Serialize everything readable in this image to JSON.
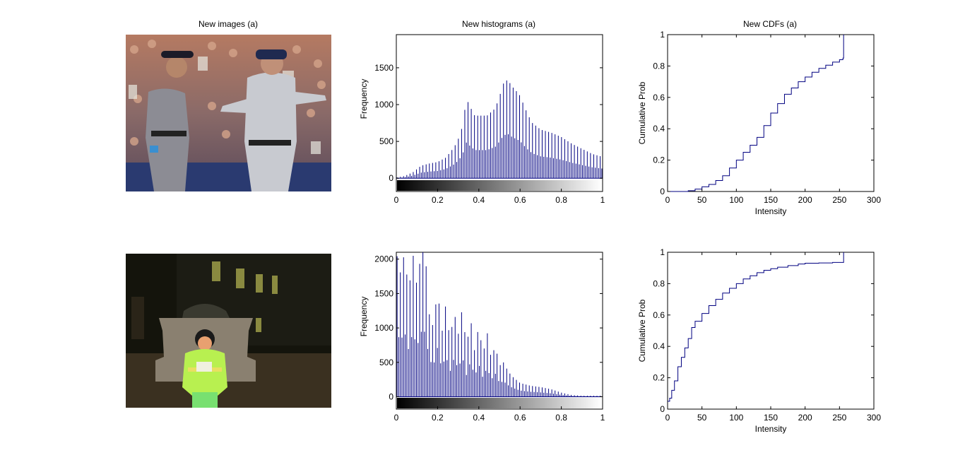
{
  "figure": {
    "col_titles": [
      "New images (a)",
      "New histograms (a)",
      "New CDFs (a)"
    ]
  },
  "images": [
    {
      "description_icon": "baseball-umpire-and-manager-photo"
    },
    {
      "description_icon": "child-at-night-photo"
    }
  ],
  "chart_data": [
    {
      "type": "bar",
      "title": "New histograms (a)",
      "ylabel": "Frequency",
      "xlim": [
        0,
        1
      ],
      "ylim": [
        -180,
        1950
      ],
      "xticks": [
        "0",
        "0.2",
        "0.4",
        "0.6",
        "0.8",
        "1"
      ],
      "yticks": [
        "0",
        "500",
        "1000",
        "1500"
      ],
      "ytick_values": [
        0,
        500,
        1000,
        1500
      ],
      "colorbar": "grayscale",
      "bar_color": "#000080",
      "control_points": {
        "x": [
          0.0,
          0.04,
          0.08,
          0.12,
          0.16,
          0.2,
          0.24,
          0.28,
          0.3,
          0.32,
          0.34,
          0.36,
          0.38,
          0.4,
          0.44,
          0.48,
          0.5,
          0.52,
          0.54,
          0.56,
          0.58,
          0.6,
          0.62,
          0.64,
          0.66,
          0.7,
          0.75,
          0.8,
          0.85,
          0.9,
          0.95,
          1.0
        ],
        "y": [
          10,
          30,
          80,
          170,
          200,
          220,
          280,
          420,
          530,
          700,
          1080,
          960,
          850,
          850,
          850,
          950,
          1110,
          1290,
          1340,
          1250,
          1190,
          1120,
          980,
          850,
          750,
          660,
          620,
          560,
          470,
          400,
          330,
          290
        ]
      }
    },
    {
      "type": "line",
      "title": "New CDFs (a)",
      "xlabel": "Intensity",
      "ylabel": "Cumulative Prob",
      "xlim": [
        0,
        300
      ],
      "ylim": [
        0,
        1
      ],
      "xticks": [
        "0",
        "50",
        "100",
        "150",
        "200",
        "250",
        "300"
      ],
      "xtick_values": [
        0,
        50,
        100,
        150,
        200,
        250,
        300
      ],
      "yticks": [
        "0",
        "0.2",
        "0.4",
        "0.6",
        "0.8",
        "1"
      ],
      "ytick_values": [
        0,
        0.2,
        0.4,
        0.6,
        0.8,
        1
      ],
      "line_color": "#000080",
      "x": [
        0,
        10,
        20,
        30,
        40,
        50,
        60,
        70,
        80,
        90,
        100,
        110,
        120,
        130,
        140,
        150,
        160,
        170,
        180,
        190,
        200,
        210,
        220,
        230,
        240,
        250,
        255,
        256,
        256
      ],
      "y": [
        0,
        0,
        0,
        0.005,
        0.015,
        0.03,
        0.045,
        0.07,
        0.1,
        0.15,
        0.2,
        0.25,
        0.295,
        0.345,
        0.42,
        0.5,
        0.56,
        0.62,
        0.66,
        0.7,
        0.73,
        0.76,
        0.785,
        0.805,
        0.825,
        0.84,
        0.85,
        0.85,
        1.0
      ]
    },
    {
      "type": "bar",
      "ylabel": "Frequency",
      "xlim": [
        0,
        1
      ],
      "ylim": [
        -180,
        2100
      ],
      "xticks": [
        "0",
        "0.2",
        "0.4",
        "0.6",
        "0.8",
        "1"
      ],
      "yticks": [
        "0",
        "500",
        "1000",
        "1500",
        "2000"
      ],
      "ytick_values": [
        0,
        500,
        1000,
        1500,
        2000
      ],
      "colorbar": "grayscale",
      "bar_color": "#000080",
      "control_points": {
        "x": [
          0.0,
          0.02,
          0.04,
          0.06,
          0.08,
          0.1,
          0.12,
          0.14,
          0.16,
          0.18,
          0.2,
          0.22,
          0.24,
          0.26,
          0.28,
          0.3,
          0.32,
          0.34,
          0.36,
          0.38,
          0.4,
          0.42,
          0.44,
          0.46,
          0.48,
          0.5,
          0.52,
          0.54,
          0.56,
          0.6,
          0.65,
          0.7,
          0.75,
          0.8,
          0.85,
          0.9,
          1.0
        ],
        "y": [
          2100,
          1800,
          2100,
          1500,
          2100,
          1600,
          2100,
          2100,
          1200,
          1000,
          1600,
          900,
          1350,
          800,
          1250,
          900,
          1300,
          700,
          1150,
          650,
          1050,
          600,
          950,
          550,
          750,
          450,
          500,
          380,
          300,
          200,
          160,
          140,
          110,
          60,
          25,
          15,
          15
        ]
      }
    },
    {
      "type": "line",
      "xlabel": "Intensity",
      "ylabel": "Cumulative Prob",
      "xlim": [
        0,
        300
      ],
      "ylim": [
        0,
        1
      ],
      "xticks": [
        "0",
        "50",
        "100",
        "150",
        "200",
        "250",
        "300"
      ],
      "xtick_values": [
        0,
        50,
        100,
        150,
        200,
        250,
        300
      ],
      "yticks": [
        "0",
        "0.2",
        "0.4",
        "0.6",
        "0.8",
        "1"
      ],
      "ytick_values": [
        0,
        0.2,
        0.4,
        0.6,
        0.8,
        1
      ],
      "line_color": "#000080",
      "x": [
        0,
        3,
        6,
        10,
        15,
        20,
        25,
        30,
        35,
        40,
        50,
        60,
        70,
        80,
        90,
        100,
        110,
        120,
        130,
        140,
        150,
        160,
        175,
        190,
        200,
        220,
        240,
        255,
        256,
        256
      ],
      "y": [
        0.05,
        0.07,
        0.12,
        0.18,
        0.27,
        0.33,
        0.39,
        0.45,
        0.52,
        0.56,
        0.61,
        0.66,
        0.7,
        0.74,
        0.77,
        0.8,
        0.83,
        0.85,
        0.87,
        0.885,
        0.895,
        0.905,
        0.915,
        0.925,
        0.93,
        0.932,
        0.935,
        0.935,
        0.935,
        1.0
      ]
    }
  ]
}
